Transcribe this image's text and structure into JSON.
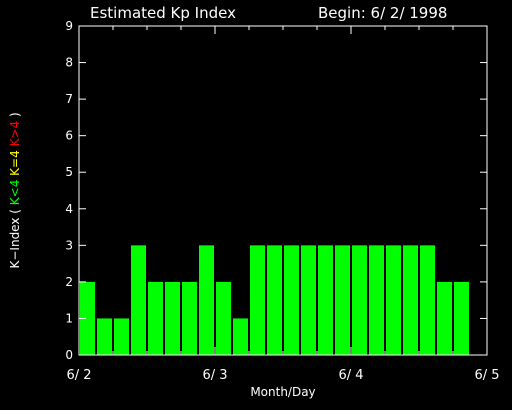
{
  "header": {
    "title": "Estimated Kp Index",
    "begin": "Begin: 6/ 2/ 1998"
  },
  "colors": {
    "background": "#000000",
    "axis": "#ffffff",
    "bar": "#00ff00",
    "below_label": "#00ff00",
    "equal_label": "#ffff00",
    "above_label": "#ff0000"
  },
  "chart_data": {
    "type": "bar",
    "title": "Estimated Kp Index",
    "subtitle": "Begin: 6/ 2/ 1998",
    "xlabel": "Month/Day",
    "ylabel_parts": {
      "prefix": "K−Index (",
      "below": "K<4",
      "equal": "K=4",
      "above": "K>4",
      "suffix": ")"
    },
    "ylim": [
      0,
      9
    ],
    "yticks": [
      0,
      1,
      2,
      3,
      4,
      5,
      6,
      7,
      8,
      9
    ],
    "xlim_days": [
      0,
      3
    ],
    "xtick_labels": [
      "6/ 2",
      "6/ 3",
      "6/ 4",
      "6/ 5"
    ],
    "bars_per_day": 8,
    "values": [
      2,
      1,
      1,
      3,
      2,
      2,
      2,
      3,
      2,
      1,
      3,
      3,
      3,
      3,
      3,
      3,
      3,
      3,
      3,
      3,
      3,
      2,
      2
    ],
    "grid": false
  }
}
